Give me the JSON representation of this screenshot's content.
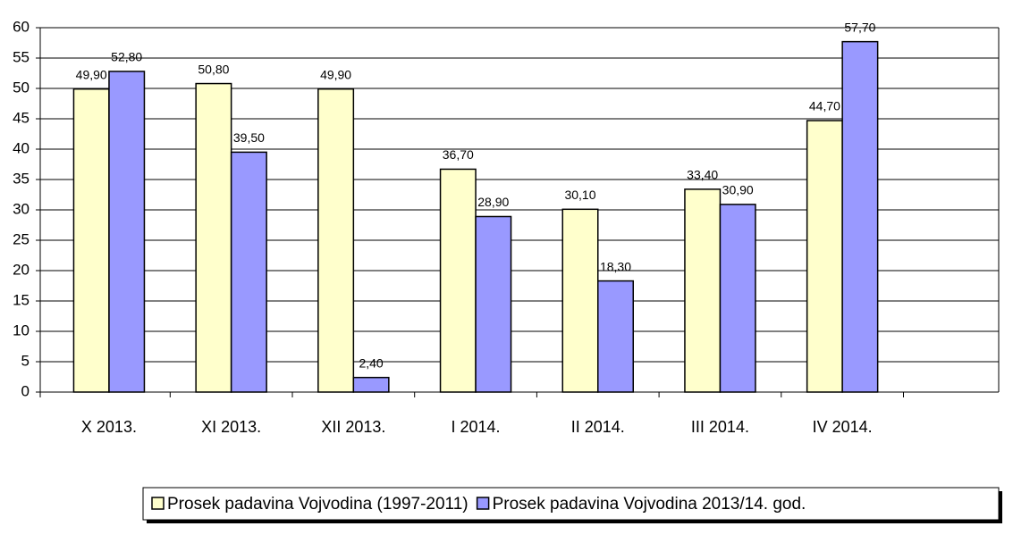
{
  "chart_data": {
    "type": "bar",
    "categories": [
      "X 2013.",
      "XI 2013.",
      "XII 2013.",
      "I 2014.",
      "II 2014.",
      "III 2014.",
      "IV 2014.",
      null
    ],
    "series": [
      {
        "name": "Prosek padavina Vojvodina (1997-2011)",
        "color": "#ffffcc",
        "values": [
          49.9,
          50.8,
          49.9,
          36.7,
          30.1,
          33.4,
          44.7,
          null
        ],
        "value_labels": [
          "49,90",
          "50,80",
          "49,90",
          "36,70",
          "30,10",
          "33,40",
          "44,70",
          null
        ]
      },
      {
        "name": "Prosek padavina Vojvodina 2013/14. god.",
        "color": "#9999ff",
        "values": [
          52.8,
          39.5,
          2.4,
          28.9,
          18.3,
          30.9,
          57.7,
          null
        ],
        "value_labels": [
          "52,80",
          "39,50",
          "2,40",
          "28,90",
          "18,30",
          "30,90",
          "57,70",
          null
        ]
      }
    ],
    "ylim": [
      0,
      60
    ],
    "yticks": [
      0,
      5,
      10,
      15,
      20,
      25,
      30,
      35,
      40,
      45,
      50,
      55,
      60
    ],
    "grid": true,
    "legend": "bottom"
  }
}
